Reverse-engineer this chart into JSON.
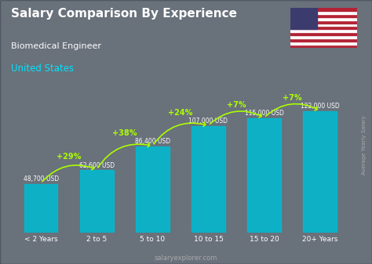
{
  "categories": [
    "< 2 Years",
    "2 to 5",
    "5 to 10",
    "10 to 15",
    "15 to 20",
    "20+ Years"
  ],
  "values": [
    48700,
    62600,
    86400,
    107000,
    115000,
    122000
  ],
  "labels": [
    "48,700 USD",
    "62,600 USD",
    "86,400 USD",
    "107,000 USD",
    "115,000 USD",
    "122,000 USD"
  ],
  "pct_changes": [
    "+29%",
    "+38%",
    "+24%",
    "+7%",
    "+7%"
  ],
  "bar_color": "#00bcd4",
  "bar_color_top": "#29d6f0",
  "bg_color": "#1a1a2e",
  "title": "Salary Comparison By Experience",
  "subtitle": "Biomedical Engineer",
  "country": "United States",
  "footer": "salaryexplorer.com",
  "ylabel": "Average Yearly Salary",
  "pct_color": "#aaff00",
  "label_color": "#ffffff",
  "title_color": "#ffffff",
  "subtitle_color": "#ffffff",
  "country_color": "#00e5ff"
}
